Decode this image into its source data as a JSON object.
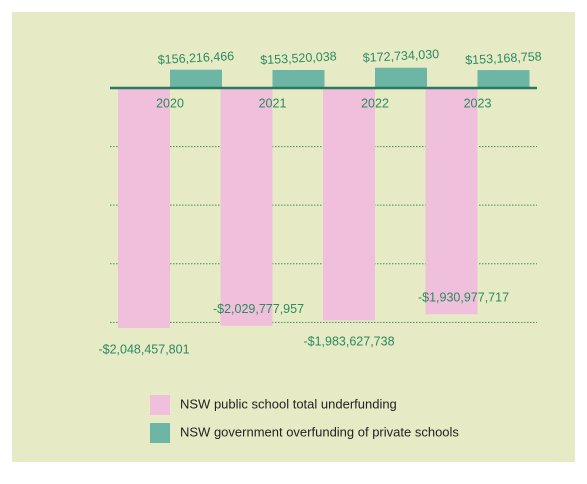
{
  "chart_data": {
    "type": "bar",
    "categories": [
      "2020",
      "2021",
      "2022",
      "2023"
    ],
    "series": [
      {
        "name": "NSW public school total underfunding",
        "color": "#f0bfdc",
        "values": [
          -2048457801,
          -2029777957,
          -1983627738,
          -1930977717
        ],
        "value_labels": [
          "-$2,048,457,801",
          "-$2,029,777,957",
          "-$1,983,627,738",
          "-$1,930,977,717"
        ]
      },
      {
        "name": "NSW government overfunding of private schools",
        "color": "#6db5a4",
        "values": [
          156216466,
          153520038,
          172734030,
          153168758
        ],
        "value_labels": [
          "$156,216,466",
          "$153,520,038",
          "$172,734,030",
          "$153,168,758"
        ]
      }
    ],
    "ylim": [
      -2100000000,
      300000000
    ],
    "yticks": [
      0,
      -500000000,
      -1000000000,
      -1500000000,
      -2000000000
    ],
    "grid": true
  }
}
